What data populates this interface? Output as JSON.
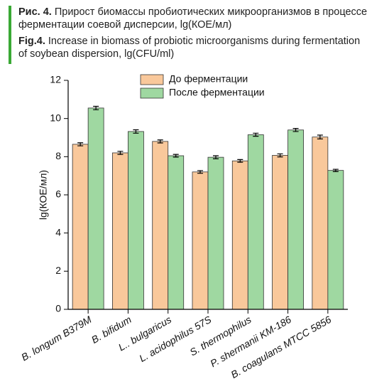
{
  "caption": {
    "ru_label": "Рис. 4.",
    "ru_text": "Прирост биомассы пробиотических микроорганизмов в процессе ферментации соевой дисперсии, lg(КОЕ/мл)",
    "en_label": "Fig.4.",
    "en_text": "Increase in biomass of probiotic microorganisms during fermentation of soybean dispersion, lg(CFU/ml)"
  },
  "chart_data": {
    "type": "bar",
    "y_label": "lg(КОЕ/мл)",
    "categories": [
      "B. longum B379M",
      "B. bifidum",
      "L.. bulgaricus",
      "L. acidophilus 57S",
      "S. thermophilus",
      "P. shermanii KM-186",
      "B. coagulans MTCC 5856"
    ],
    "series": [
      {
        "name": "До ферментации",
        "color": "#f9c89b",
        "values": [
          8.65,
          8.2,
          8.8,
          7.2,
          7.78,
          8.07,
          9.03
        ],
        "errors": [
          0.08,
          0.08,
          0.08,
          0.07,
          0.07,
          0.08,
          0.1
        ]
      },
      {
        "name": "После ферментации",
        "color": "#9fd8a1",
        "values": [
          10.55,
          9.32,
          8.05,
          7.97,
          9.15,
          9.4,
          7.28
        ],
        "errors": [
          0.09,
          0.09,
          0.07,
          0.08,
          0.08,
          0.08,
          0.06
        ]
      }
    ],
    "ylim": [
      0,
      12
    ],
    "yticks": [
      0,
      2,
      4,
      6,
      8,
      10,
      12
    ],
    "legend": "top"
  }
}
